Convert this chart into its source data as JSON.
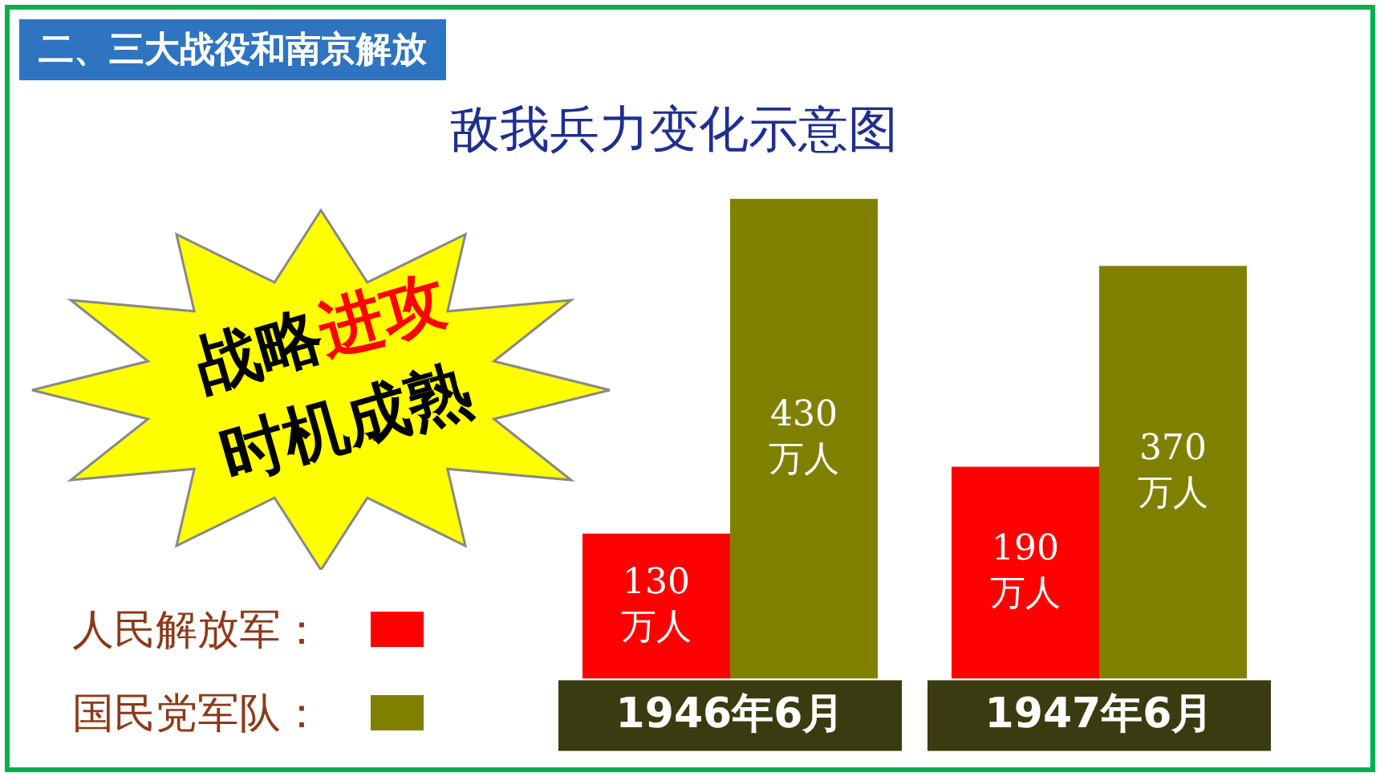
{
  "chart_data": {
    "type": "bar",
    "title": "敌我兵力变化示意图",
    "categories": [
      "1946年6月",
      "1947年6月"
    ],
    "series": [
      {
        "name": "人民解放军：",
        "color": "#ff0000",
        "values": [
          130,
          190
        ],
        "value_labels": [
          "130 万人",
          "190 万人"
        ]
      },
      {
        "name": "国民党军队：",
        "color": "#808000",
        "values": [
          430,
          370
        ],
        "value_labels": [
          "430 万人",
          "370 万人"
        ]
      }
    ],
    "legend": "left",
    "grid": false,
    "annotations": [
      "二、三大战役和南京解放",
      "战略进攻",
      "时机成熟"
    ]
  }
}
